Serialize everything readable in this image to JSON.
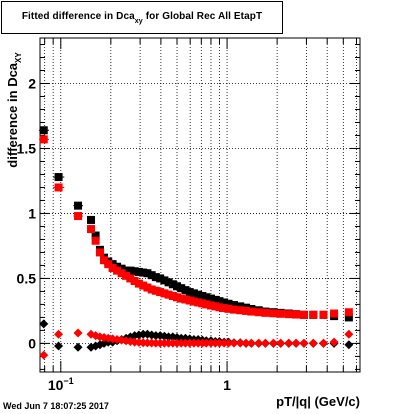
{
  "chart_data": {
    "type": "scatter",
    "title_main": "Fitted difference in Dca",
    "title_sub": "xy",
    "title_rest": "for Global Rec All EtapT",
    "xlabel": "pT/|q| (GeV/c)",
    "ylabel_main": "difference in Dca",
    "ylabel_sub": "XY",
    "x_scale": "log",
    "xlim": [
      0.075,
      6.3
    ],
    "ylim": [
      -0.22,
      2.35
    ],
    "grid": true,
    "y_ticks": [
      {
        "v": 0,
        "label": "0"
      },
      {
        "v": 0.5,
        "label": "0.5"
      },
      {
        "v": 1,
        "label": "1"
      },
      {
        "v": 1.5,
        "label": "1.5"
      },
      {
        "v": 2,
        "label": "2"
      }
    ],
    "x_ticks": [
      {
        "v": 0.1,
        "label": "10",
        "sup": "−1"
      },
      {
        "v": 1,
        "label": "1",
        "sup": ""
      }
    ],
    "series": [
      {
        "color": "#000000",
        "marker": "square",
        "points": [
          [
            0.079,
            1.64
          ],
          [
            0.097,
            1.28
          ],
          [
            0.127,
            1.06
          ],
          [
            0.152,
            0.95
          ],
          [
            0.162,
            0.83
          ],
          [
            0.172,
            0.72
          ],
          [
            0.182,
            0.66
          ],
          [
            0.193,
            0.63
          ],
          [
            0.205,
            0.61
          ],
          [
            0.218,
            0.59
          ],
          [
            0.232,
            0.575
          ],
          [
            0.247,
            0.56
          ],
          [
            0.262,
            0.56
          ],
          [
            0.278,
            0.555
          ],
          [
            0.295,
            0.55
          ],
          [
            0.313,
            0.545
          ],
          [
            0.332,
            0.54
          ],
          [
            0.352,
            0.525
          ],
          [
            0.373,
            0.51
          ],
          [
            0.396,
            0.5
          ],
          [
            0.42,
            0.485
          ],
          [
            0.445,
            0.47
          ],
          [
            0.472,
            0.455
          ],
          [
            0.5,
            0.44
          ],
          [
            0.53,
            0.425
          ],
          [
            0.562,
            0.41
          ],
          [
            0.596,
            0.395
          ],
          [
            0.632,
            0.385
          ],
          [
            0.67,
            0.375
          ],
          [
            0.71,
            0.365
          ],
          [
            0.75,
            0.355
          ],
          [
            0.8,
            0.345
          ],
          [
            0.85,
            0.335
          ],
          [
            0.9,
            0.325
          ],
          [
            0.96,
            0.315
          ],
          [
            1.02,
            0.305
          ],
          [
            1.1,
            0.295
          ],
          [
            1.2,
            0.285
          ],
          [
            1.3,
            0.275
          ],
          [
            1.4,
            0.265
          ],
          [
            1.55,
            0.255
          ],
          [
            1.7,
            0.245
          ],
          [
            1.9,
            0.24
          ],
          [
            2.1,
            0.235
          ],
          [
            2.35,
            0.23
          ],
          [
            2.6,
            0.225
          ],
          [
            2.9,
            0.22
          ],
          [
            3.3,
            0.22
          ],
          [
            3.8,
            0.22
          ],
          [
            4.4,
            0.21
          ],
          [
            5.4,
            0.2
          ]
        ],
        "xerr": [
          [
            0.079,
            0.074,
            0.085
          ],
          [
            0.097,
            0.09,
            0.105
          ],
          [
            0.127,
            0.119,
            0.136
          ],
          [
            0.152,
            0.145,
            0.16
          ]
        ]
      },
      {
        "color": "#ff0000",
        "marker": "square",
        "points": [
          [
            0.079,
            1.57
          ],
          [
            0.097,
            1.2
          ],
          [
            0.127,
            0.98
          ],
          [
            0.152,
            0.88
          ],
          [
            0.162,
            0.79
          ],
          [
            0.172,
            0.7
          ],
          [
            0.182,
            0.64
          ],
          [
            0.193,
            0.61
          ],
          [
            0.205,
            0.58
          ],
          [
            0.218,
            0.56
          ],
          [
            0.232,
            0.54
          ],
          [
            0.247,
            0.52
          ],
          [
            0.262,
            0.5
          ],
          [
            0.278,
            0.48
          ],
          [
            0.295,
            0.46
          ],
          [
            0.313,
            0.445
          ],
          [
            0.332,
            0.43
          ],
          [
            0.352,
            0.415
          ],
          [
            0.373,
            0.405
          ],
          [
            0.396,
            0.395
          ],
          [
            0.42,
            0.385
          ],
          [
            0.445,
            0.375
          ],
          [
            0.472,
            0.365
          ],
          [
            0.5,
            0.355
          ],
          [
            0.53,
            0.345
          ],
          [
            0.562,
            0.338
          ],
          [
            0.596,
            0.33
          ],
          [
            0.632,
            0.322
          ],
          [
            0.67,
            0.315
          ],
          [
            0.71,
            0.308
          ],
          [
            0.75,
            0.3
          ],
          [
            0.8,
            0.292
          ],
          [
            0.85,
            0.285
          ],
          [
            0.9,
            0.278
          ],
          [
            0.96,
            0.272
          ],
          [
            1.02,
            0.266
          ],
          [
            1.1,
            0.26
          ],
          [
            1.2,
            0.255
          ],
          [
            1.3,
            0.25
          ],
          [
            1.4,
            0.245
          ],
          [
            1.55,
            0.24
          ],
          [
            1.7,
            0.235
          ],
          [
            1.9,
            0.232
          ],
          [
            2.1,
            0.228
          ],
          [
            2.35,
            0.225
          ],
          [
            2.6,
            0.222
          ],
          [
            2.9,
            0.22
          ],
          [
            3.3,
            0.22
          ],
          [
            3.8,
            0.22
          ],
          [
            4.4,
            0.23
          ],
          [
            5.4,
            0.24
          ]
        ],
        "xerr": [
          [
            0.079,
            0.074,
            0.085
          ],
          [
            0.097,
            0.09,
            0.105
          ],
          [
            0.127,
            0.119,
            0.136
          ],
          [
            0.152,
            0.145,
            0.16
          ]
        ]
      },
      {
        "color": "#000000",
        "marker": "diamond",
        "points": [
          [
            0.079,
            0.15
          ],
          [
            0.097,
            -0.02
          ],
          [
            0.127,
            -0.03
          ],
          [
            0.152,
            -0.03
          ],
          [
            0.162,
            -0.02
          ],
          [
            0.172,
            -0.01
          ],
          [
            0.182,
            0.0
          ],
          [
            0.193,
            0.01
          ],
          [
            0.205,
            0.01
          ],
          [
            0.218,
            0.02
          ],
          [
            0.232,
            0.03
          ],
          [
            0.247,
            0.04
          ],
          [
            0.262,
            0.05
          ],
          [
            0.278,
            0.06
          ],
          [
            0.295,
            0.065
          ],
          [
            0.313,
            0.07
          ],
          [
            0.332,
            0.07
          ],
          [
            0.352,
            0.065
          ],
          [
            0.373,
            0.06
          ],
          [
            0.396,
            0.06
          ],
          [
            0.42,
            0.055
          ],
          [
            0.445,
            0.05
          ],
          [
            0.472,
            0.05
          ],
          [
            0.5,
            0.045
          ],
          [
            0.53,
            0.04
          ],
          [
            0.562,
            0.04
          ],
          [
            0.596,
            0.035
          ],
          [
            0.632,
            0.03
          ],
          [
            0.67,
            0.03
          ],
          [
            0.71,
            0.025
          ],
          [
            0.75,
            0.02
          ],
          [
            0.8,
            0.02
          ],
          [
            0.85,
            0.015
          ],
          [
            0.9,
            0.015
          ],
          [
            0.96,
            0.01
          ],
          [
            1.02,
            0.01
          ],
          [
            1.1,
            0.005
          ],
          [
            1.2,
            0.005
          ],
          [
            1.3,
            0.0
          ],
          [
            1.4,
            0.0
          ],
          [
            1.55,
            0.0
          ],
          [
            1.7,
            0.0
          ],
          [
            1.9,
            0.0
          ],
          [
            2.1,
            0.0
          ],
          [
            2.35,
            0.0
          ],
          [
            2.6,
            0.0
          ],
          [
            2.9,
            0.0
          ],
          [
            3.3,
            0.0
          ],
          [
            3.8,
            0.0
          ],
          [
            4.4,
            0.0
          ],
          [
            5.4,
            -0.01
          ]
        ]
      },
      {
        "color": "#ff0000",
        "marker": "diamond",
        "points": [
          [
            0.079,
            -0.09
          ],
          [
            0.097,
            0.07
          ],
          [
            0.127,
            0.08
          ],
          [
            0.152,
            0.07
          ],
          [
            0.162,
            0.06
          ],
          [
            0.172,
            0.05
          ],
          [
            0.182,
            0.045
          ],
          [
            0.193,
            0.04
          ],
          [
            0.205,
            0.035
          ],
          [
            0.218,
            0.03
          ],
          [
            0.232,
            0.025
          ],
          [
            0.247,
            0.02
          ],
          [
            0.262,
            0.015
          ],
          [
            0.278,
            0.01
          ],
          [
            0.295,
            0.008
          ],
          [
            0.313,
            0.005
          ],
          [
            0.332,
            0.004
          ],
          [
            0.352,
            0.003
          ],
          [
            0.373,
            0.002
          ],
          [
            0.396,
            0.002
          ],
          [
            0.42,
            0.002
          ],
          [
            0.445,
            0.002
          ],
          [
            0.472,
            0.002
          ],
          [
            0.5,
            0.002
          ],
          [
            0.53,
            0.002
          ],
          [
            0.562,
            0.002
          ],
          [
            0.596,
            0.002
          ],
          [
            0.632,
            0.002
          ],
          [
            0.67,
            0.002
          ],
          [
            0.71,
            0.002
          ],
          [
            0.75,
            0.002
          ],
          [
            0.8,
            0.002
          ],
          [
            0.85,
            0.002
          ],
          [
            0.9,
            0.002
          ],
          [
            0.96,
            0.002
          ],
          [
            1.02,
            0.002
          ],
          [
            1.1,
            0.002
          ],
          [
            1.2,
            0.002
          ],
          [
            1.3,
            0.002
          ],
          [
            1.4,
            0.002
          ],
          [
            1.55,
            0.002
          ],
          [
            1.7,
            0.002
          ],
          [
            1.9,
            0.002
          ],
          [
            2.1,
            0.002
          ],
          [
            2.35,
            0.002
          ],
          [
            2.6,
            0.002
          ],
          [
            2.9,
            0.002
          ],
          [
            3.3,
            0.002
          ],
          [
            3.8,
            0.002
          ],
          [
            4.4,
            0.01
          ],
          [
            5.4,
            0.07
          ]
        ]
      }
    ]
  },
  "timestamp": "Wed Jun  7 18:07:25 2017"
}
